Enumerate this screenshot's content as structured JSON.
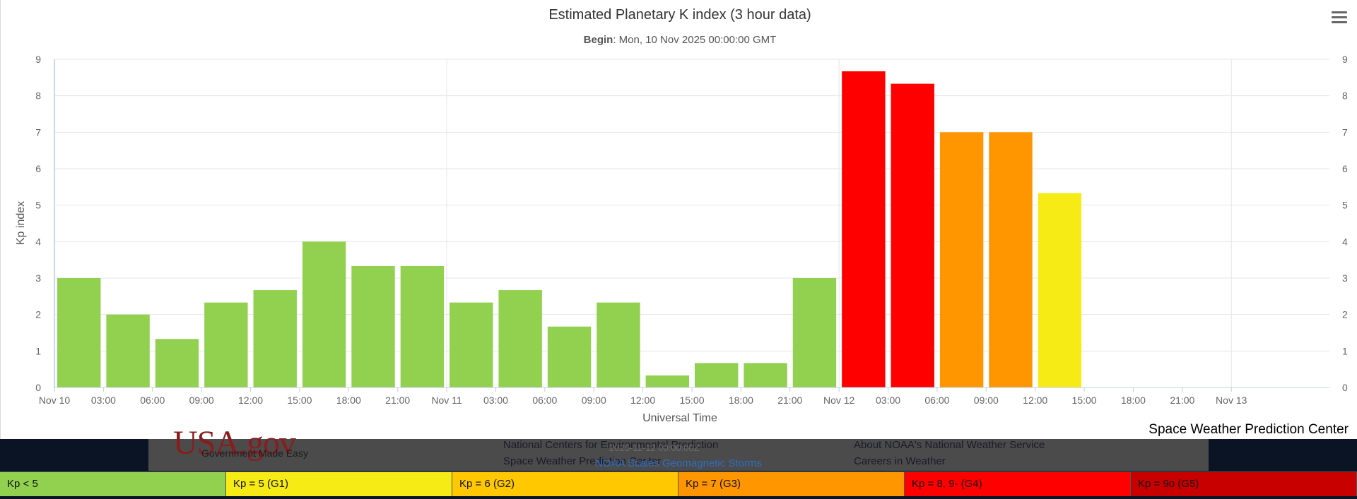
{
  "chart_data": {
    "type": "bar",
    "title": "Estimated Planetary K index (3 hour data)",
    "subtitle_label": "Begin",
    "subtitle_value": ": Mon, 10 Nov 2025 00:00:00 GMT",
    "ylabel": "Kp index",
    "xlabel": "Universal Time",
    "ylim": [
      0,
      9
    ],
    "yticks": [
      0,
      1,
      2,
      3,
      4,
      5,
      6,
      7,
      8,
      9
    ],
    "xlim_hours": [
      0,
      78
    ],
    "xtick_step_hours": 3,
    "xtick_labels": [
      "Nov 10",
      "03:00",
      "06:00",
      "09:00",
      "12:00",
      "15:00",
      "18:00",
      "21:00",
      "Nov 11",
      "03:00",
      "06:00",
      "09:00",
      "12:00",
      "15:00",
      "18:00",
      "21:00",
      "Nov 12",
      "03:00",
      "06:00",
      "09:00",
      "12:00",
      "15:00",
      "18:00",
      "21:00",
      "Nov 13"
    ],
    "grid": true,
    "categories": [
      "Nov 10 00:00",
      "Nov 10 03:00",
      "Nov 10 06:00",
      "Nov 10 09:00",
      "Nov 10 12:00",
      "Nov 10 15:00",
      "Nov 10 18:00",
      "Nov 10 21:00",
      "Nov 11 00:00",
      "Nov 11 03:00",
      "Nov 11 06:00",
      "Nov 11 09:00",
      "Nov 11 12:00",
      "Nov 11 15:00",
      "Nov 11 18:00",
      "Nov 11 21:00",
      "Nov 12 00:00",
      "Nov 12 03:00",
      "Nov 12 06:00",
      "Nov 12 09:00",
      "Nov 12 12:00"
    ],
    "values": [
      3.0,
      2.0,
      1.33,
      2.33,
      2.67,
      4.0,
      3.33,
      3.33,
      2.33,
      2.67,
      1.67,
      2.33,
      0.33,
      0.67,
      0.67,
      3.0,
      8.67,
      8.33,
      7.0,
      7.0,
      5.33
    ],
    "color_bands": [
      {
        "max": 5,
        "color": "#92d050"
      },
      {
        "max": 6,
        "color": "#f6eb14"
      },
      {
        "max": 7,
        "color": "#ffc800"
      },
      {
        "max": 8,
        "color": "#ff9600"
      },
      {
        "max": 9,
        "color": "#ff0000"
      },
      {
        "max": 99,
        "color": "#c80000"
      }
    ]
  },
  "menu_icon": "hamburger-menu-icon",
  "credit": "Space Weather Prediction Center",
  "footer": {
    "logo_text": "USA.gov",
    "logo_tagline": "Government Made Easy",
    "links_center": [
      "National Centers for Environmental Prediction",
      "Space Weather Prediction Center"
    ],
    "dim_text": "2025-11-12 00:00:00Z",
    "blue_link": "NOAA Scales Geomagnetic Storms",
    "links_right": [
      "About NOAA's National Weather Service",
      "Careers in Weather"
    ]
  },
  "legend": [
    {
      "label": "Kp < 5",
      "color": "#92d050"
    },
    {
      "label": "Kp = 5 (G1)",
      "color": "#f6eb14"
    },
    {
      "label": "Kp = 6 (G2)",
      "color": "#ffc800"
    },
    {
      "label": "Kp = 7 (G3)",
      "color": "#ff9600"
    },
    {
      "label": "Kp = 8, 9- (G4)",
      "color": "#ff0000"
    },
    {
      "label": "Kp = 9o (G5)",
      "color": "#c80000"
    }
  ]
}
